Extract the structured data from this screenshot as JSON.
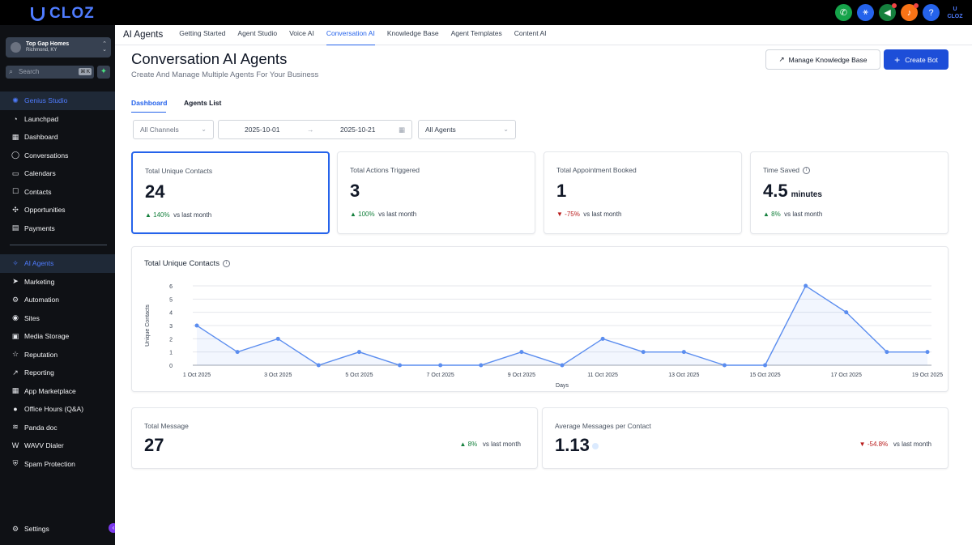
{
  "brand": {
    "name": "CLOZ"
  },
  "top_icons": [
    {
      "name": "phone-icon",
      "color": "#16a34a"
    },
    {
      "name": "network-icon",
      "color": "#2563eb"
    },
    {
      "name": "megaphone-icon",
      "color": "#15803d"
    },
    {
      "name": "bell-icon",
      "color": "#f97316"
    },
    {
      "name": "help-icon",
      "color": "#2563eb"
    }
  ],
  "sidebar": {
    "location_name": "Top Gap Homes",
    "location_city": "Richmond, KY",
    "search_label": "Search",
    "search_shortcut": "⌘ K",
    "items": [
      {
        "label": "Genius Studio",
        "icon": "✺",
        "active": true
      },
      {
        "label": "Launchpad",
        "icon": "◔"
      },
      {
        "label": "Dashboard",
        "icon": "▦"
      },
      {
        "label": "Conversations",
        "icon": "◯"
      },
      {
        "label": "Calendars",
        "icon": "▭"
      },
      {
        "label": "Contacts",
        "icon": "☐"
      },
      {
        "label": "Opportunities",
        "icon": "✣"
      },
      {
        "label": "Payments",
        "icon": "▤"
      }
    ],
    "items2": [
      {
        "label": "AI Agents",
        "icon": "✧",
        "active": true
      },
      {
        "label": "Marketing",
        "icon": "➤"
      },
      {
        "label": "Automation",
        "icon": "⚙"
      },
      {
        "label": "Sites",
        "icon": "◉"
      },
      {
        "label": "Media Storage",
        "icon": "▣"
      },
      {
        "label": "Reputation",
        "icon": "☆"
      },
      {
        "label": "Reporting",
        "icon": "↗"
      },
      {
        "label": "App Marketplace",
        "icon": "▦"
      },
      {
        "label": "Office Hours (Q&A)",
        "icon": "●"
      },
      {
        "label": "Panda doc",
        "icon": "≋"
      },
      {
        "label": "WAVV Dialer",
        "icon": "W"
      },
      {
        "label": "Spam Protection",
        "icon": "⛨"
      }
    ],
    "settings_label": "Settings"
  },
  "tabs": {
    "section": "AI Agents",
    "items": [
      "Getting Started",
      "Agent Studio",
      "Voice AI",
      "Conversation AI",
      "Knowledge Base",
      "Agent Templates",
      "Content AI"
    ],
    "active_index": 3
  },
  "page": {
    "title": "Conversation AI Agents",
    "subtitle": "Create And Manage Multiple Agents For Your Business",
    "manage_kb_label": "Manage Knowledge Base",
    "create_bot_label": "Create Bot",
    "subtab_dashboard": "Dashboard",
    "subtab_agents": "Agents List"
  },
  "filters": {
    "channels": "All Channels",
    "date_start": "2025-10-01",
    "date_end": "2025-10-21",
    "agents": "All Agents"
  },
  "stats": [
    {
      "label": "Total Unique Contacts",
      "value": "24",
      "unit": "",
      "change": "140%",
      "dir": "up",
      "suffix": "vs last month"
    },
    {
      "label": "Total Actions Triggered",
      "value": "3",
      "unit": "",
      "change": "100%",
      "dir": "up",
      "suffix": "vs last month"
    },
    {
      "label": "Total Appointment Booked",
      "value": "1",
      "unit": "",
      "change": "-75%",
      "dir": "down",
      "suffix": "vs last month"
    },
    {
      "label": "Time Saved",
      "value": "4.5",
      "unit": "minutes",
      "change": "8%",
      "dir": "up",
      "suffix": "vs last month"
    }
  ],
  "bottom_stats": [
    {
      "label": "Total Message",
      "value": "27",
      "change": "8%",
      "dir": "up",
      "suffix": "vs last month"
    },
    {
      "label": "Average Messages per Contact",
      "value": "1.13",
      "change": "-54.8%",
      "dir": "down",
      "suffix": "vs last month"
    }
  ],
  "chart_data": {
    "type": "area",
    "title": "Total Unique Contacts",
    "xlabel": "Days",
    "ylabel": "Unique Contacts",
    "ylim": [
      0,
      6
    ],
    "yticks": [
      0,
      1,
      2,
      3,
      4,
      5,
      6
    ],
    "x": [
      "1 Oct 2025",
      "2 Oct 2025",
      "3 Oct 2025",
      "4 Oct 2025",
      "5 Oct 2025",
      "6 Oct 2025",
      "7 Oct 2025",
      "8 Oct 2025",
      "9 Oct 2025",
      "10 Oct 2025",
      "11 Oct 2025",
      "12 Oct 2025",
      "13 Oct 2025",
      "14 Oct 2025",
      "15 Oct 2025",
      "16 Oct 2025",
      "17 Oct 2025",
      "18 Oct 2025",
      "19 Oct 2025"
    ],
    "xtick_labels": [
      "1 Oct 2025",
      "3 Oct 2025",
      "5 Oct 2025",
      "7 Oct 2025",
      "9 Oct 2025",
      "11 Oct 2025",
      "13 Oct 2025",
      "15 Oct 2025",
      "17 Oct 2025",
      "19 Oct 2025"
    ],
    "values": [
      3,
      1,
      2,
      0,
      1,
      0,
      0,
      0,
      1,
      0,
      2,
      1,
      1,
      0,
      0,
      6,
      4,
      1,
      1
    ],
    "color": "#5b8def",
    "grid": true
  }
}
